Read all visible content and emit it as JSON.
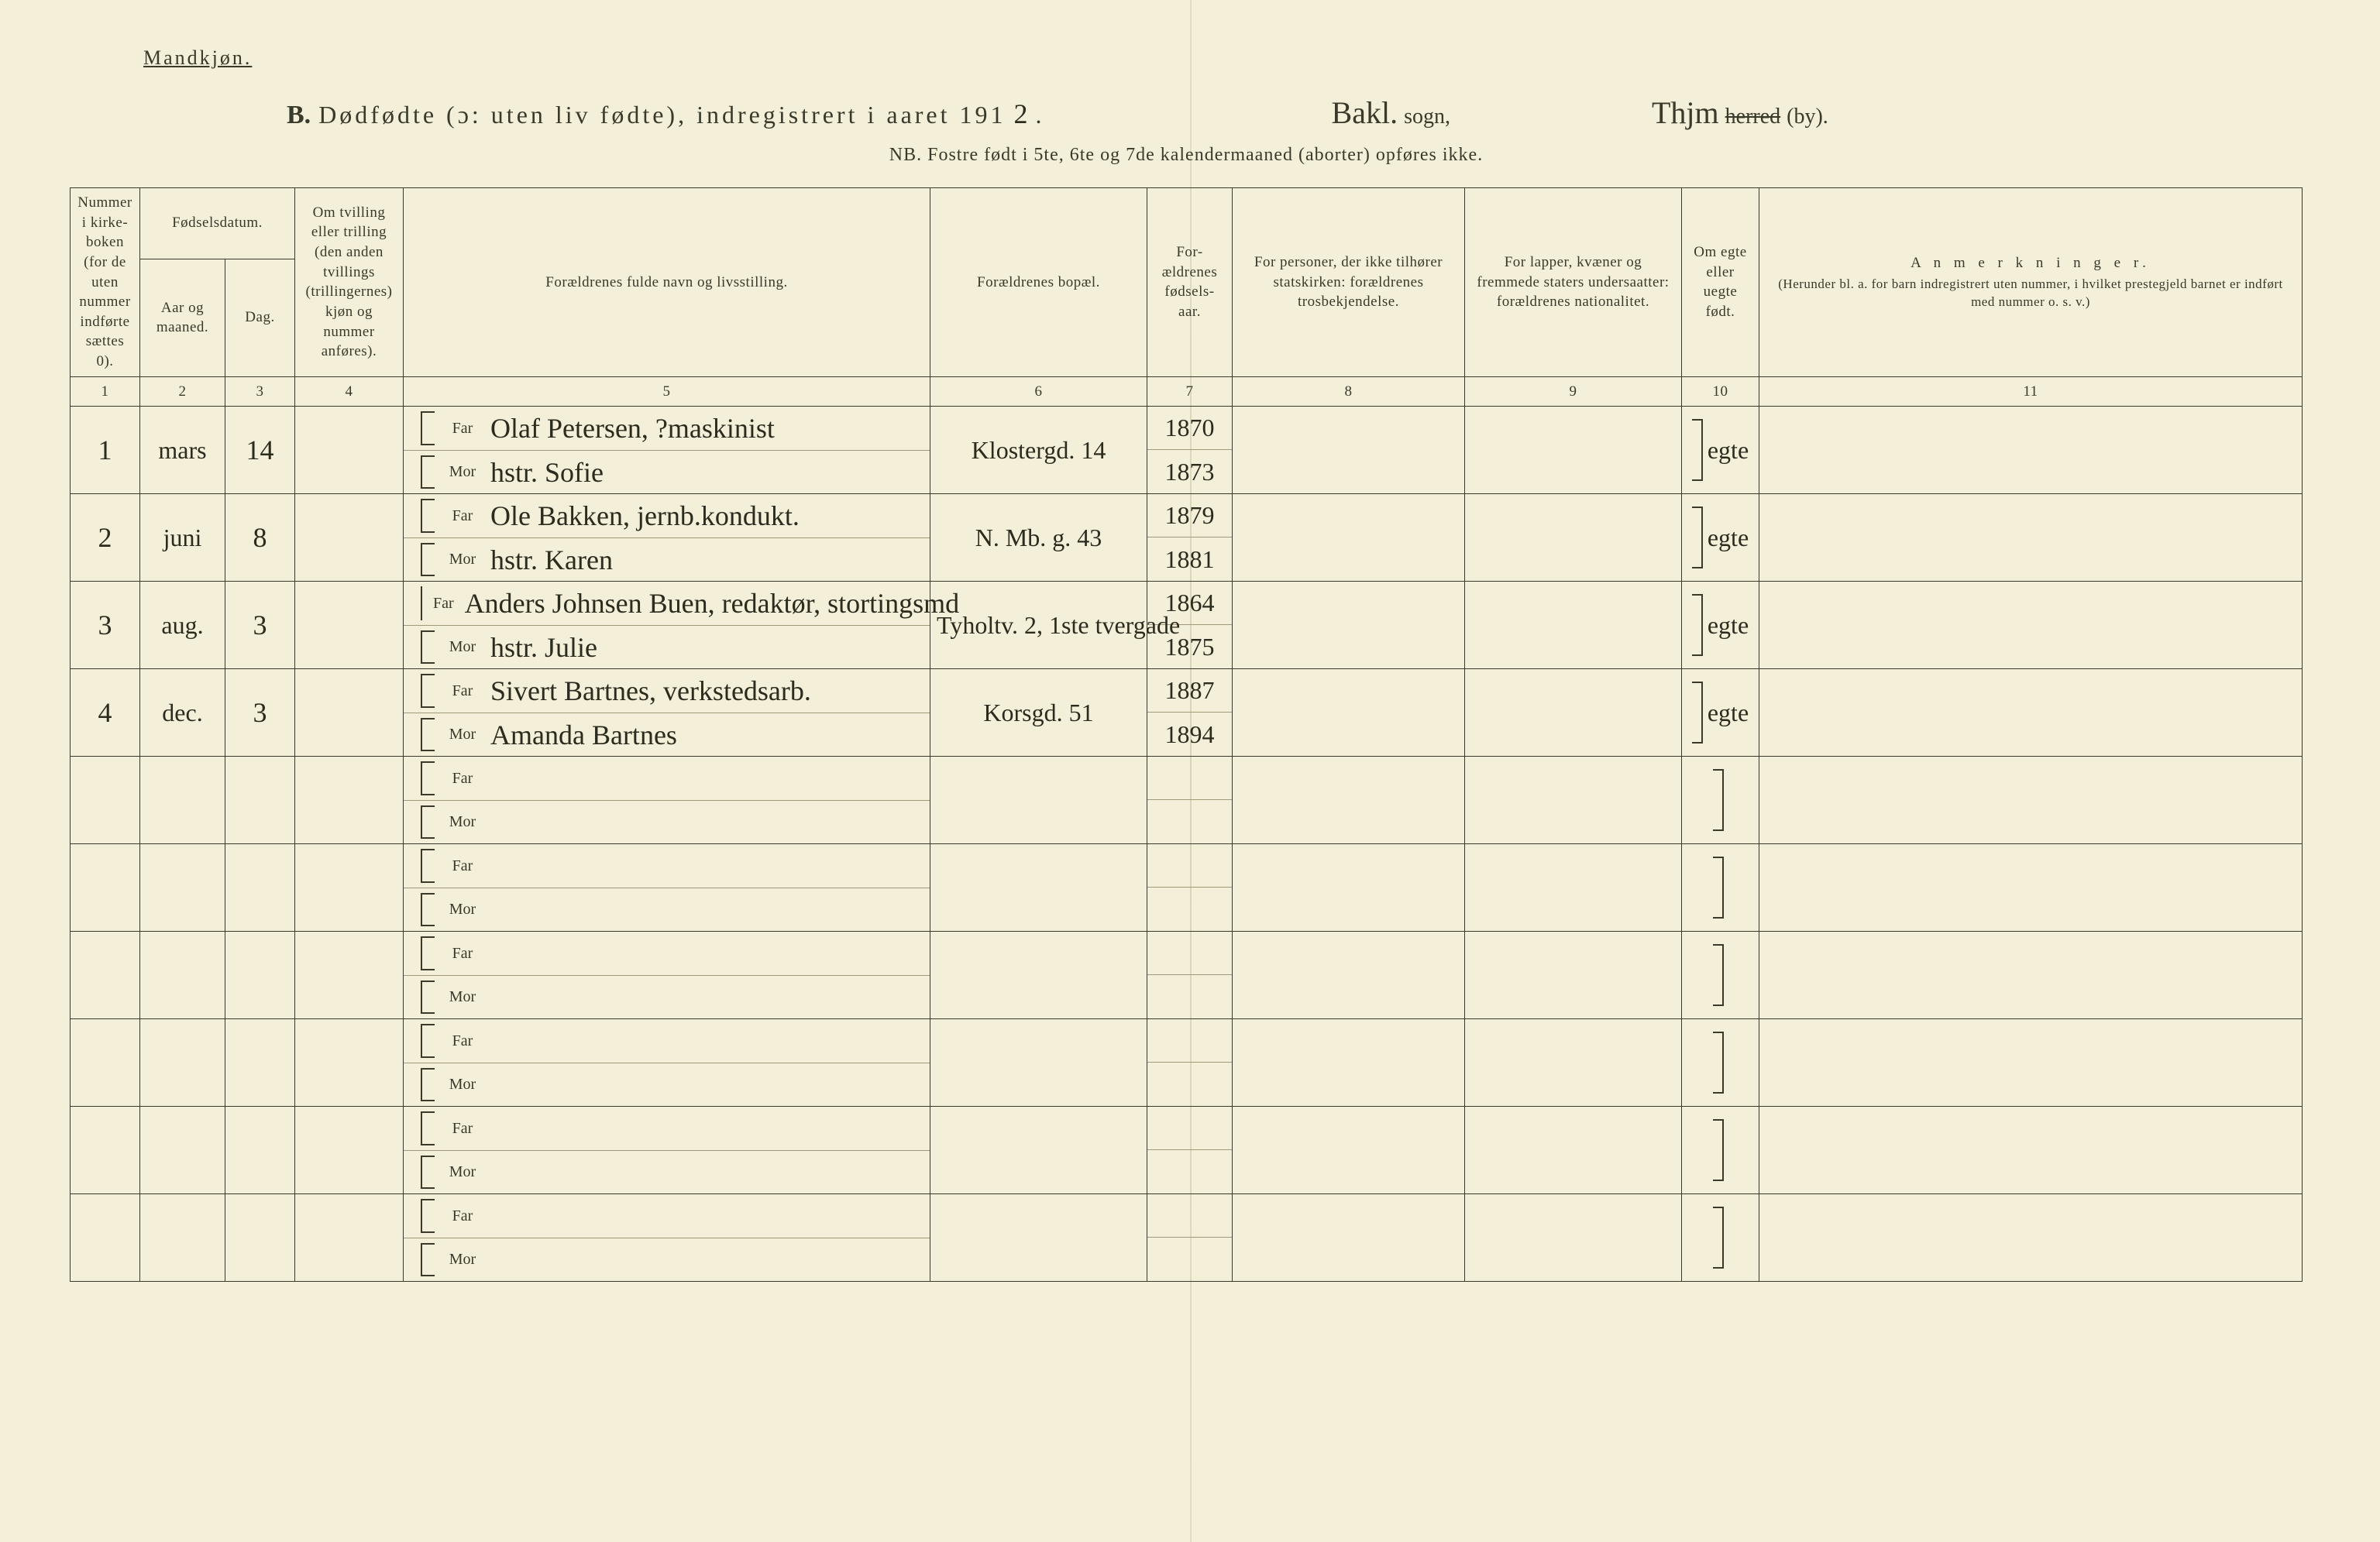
{
  "colors": {
    "paper": "#f3efd8",
    "ink": "#3a3a2a",
    "rule_light": "#a09a7a"
  },
  "header": {
    "gender_label": "Mandkjøn.",
    "section_letter": "B.",
    "title_main": "Dødfødte (ɔ: uten liv fødte), indregistrert i aaret 191",
    "year_suffix": "2",
    "period": ".",
    "sogn_name": "Bakl.",
    "sogn_label": "sogn,",
    "herred_name": "Thjm",
    "herred_strike": "herred",
    "herred_paren": "(by).",
    "subtitle": "NB.  Fostre født i 5te, 6te og 7de kalendermaaned (aborter) opføres ikke."
  },
  "columns": {
    "c1": "Nummer i kirke-boken (for de uten nummer indførte sættes 0).",
    "c2_group": "Fødselsdatum.",
    "c2": "Aar og maaned.",
    "c3": "Dag.",
    "c4": "Om tvilling eller trilling (den anden tvillings (trillingernes) kjøn og nummer anføres).",
    "c5": "Forældrenes fulde navn og livsstilling.",
    "c6": "Forældrenes bopæl.",
    "c7": "For-ældrenes fødsels-aar.",
    "c8": "For personer, der ikke tilhører statskirken: forældrenes trosbekjendelse.",
    "c9": "For lapper, kvæner og fremmede staters undersaatter: forældrenes nationalitet.",
    "c10": "Om egte eller uegte født.",
    "c11_title": "A n m e r k n i n g e r.",
    "c11_sub": "(Herunder bl. a. for barn indregistrert uten nummer, i hvilket prestegjeld barnet er indført med nummer o. s. v.)",
    "nums": [
      "1",
      "2",
      "3",
      "4",
      "5",
      "6",
      "7",
      "8",
      "9",
      "10",
      "11"
    ],
    "far": "Far",
    "mor": "Mor"
  },
  "rows": [
    {
      "num": "1",
      "month": "mars",
      "day": "14",
      "far": "Olaf Petersen, ?maskinist",
      "mor": "hstr. Sofie",
      "bopal": "Klostergd. 14",
      "far_aar": "1870",
      "mor_aar": "1873",
      "egte": "egte"
    },
    {
      "num": "2",
      "month": "juni",
      "day": "8",
      "far": "Ole Bakken, jernb.kondukt.",
      "mor": "hstr. Karen",
      "bopal": "N. Mb. g. 43",
      "far_aar": "1879",
      "mor_aar": "1881",
      "egte": "egte"
    },
    {
      "num": "3",
      "month": "aug.",
      "day": "3",
      "far": "Anders Johnsen Buen, redaktør, stortingsmd",
      "mor": "hstr. Julie",
      "bopal": "Tyholtv. 2, 1ste tvergade",
      "far_aar": "1864",
      "mor_aar": "1875",
      "egte": "egte"
    },
    {
      "num": "4",
      "month": "dec.",
      "day": "3",
      "far": "Sivert Bartnes, verkstedsarb.",
      "mor": "Amanda Bartnes",
      "bopal": "Korsgd. 51",
      "far_aar": "1887",
      "mor_aar": "1894",
      "egte": "egte"
    },
    {
      "num": "",
      "month": "",
      "day": "",
      "far": "",
      "mor": "",
      "bopal": "",
      "far_aar": "",
      "mor_aar": "",
      "egte": ""
    },
    {
      "num": "",
      "month": "",
      "day": "",
      "far": "",
      "mor": "",
      "bopal": "",
      "far_aar": "",
      "mor_aar": "",
      "egte": ""
    },
    {
      "num": "",
      "month": "",
      "day": "",
      "far": "",
      "mor": "",
      "bopal": "",
      "far_aar": "",
      "mor_aar": "",
      "egte": ""
    },
    {
      "num": "",
      "month": "",
      "day": "",
      "far": "",
      "mor": "",
      "bopal": "",
      "far_aar": "",
      "mor_aar": "",
      "egte": ""
    },
    {
      "num": "",
      "month": "",
      "day": "",
      "far": "",
      "mor": "",
      "bopal": "",
      "far_aar": "",
      "mor_aar": "",
      "egte": ""
    },
    {
      "num": "",
      "month": "",
      "day": "",
      "far": "",
      "mor": "",
      "bopal": "",
      "far_aar": "",
      "mor_aar": "",
      "egte": ""
    }
  ]
}
